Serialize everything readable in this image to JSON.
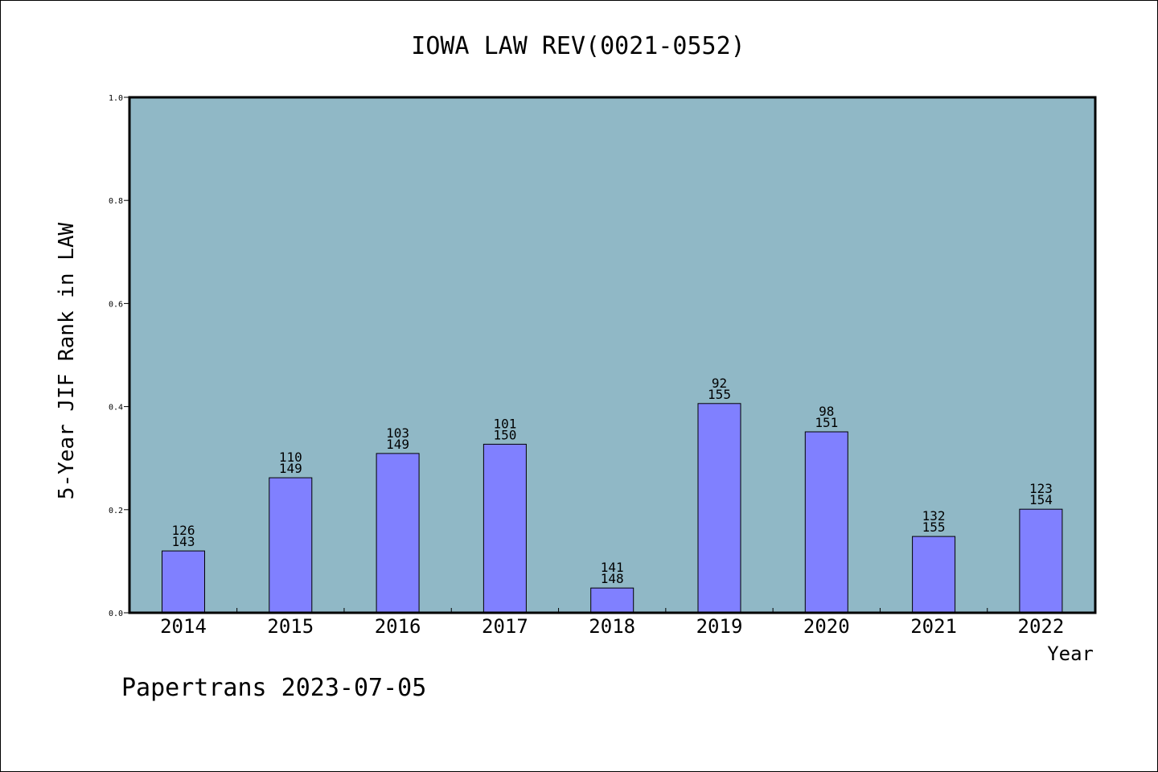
{
  "chart_data": {
    "type": "bar",
    "title": "IOWA LAW REV(0021-0552)",
    "xlabel": "Year",
    "ylabel": "5-Year JIF Rank in LAW",
    "ylim": [
      0,
      1.0
    ],
    "yticks": [
      "0.0",
      "0.2",
      "0.4",
      "0.6",
      "0.8",
      "1.0"
    ],
    "categories": [
      "2014",
      "2015",
      "2016",
      "2017",
      "2018",
      "2019",
      "2020",
      "2021",
      "2022"
    ],
    "values": [
      0.12,
      0.262,
      0.309,
      0.327,
      0.048,
      0.406,
      0.351,
      0.148,
      0.201
    ],
    "rank": [
      "126",
      "110",
      "103",
      "101",
      "141",
      "92",
      "98",
      "132",
      "123"
    ],
    "total": [
      "143",
      "149",
      "149",
      "150",
      "148",
      "155",
      "151",
      "155",
      "154"
    ],
    "grid": false,
    "colors": {
      "plot_bg": "#90b8c6",
      "bar": "#8080ff",
      "bar_edge": "#000000"
    }
  },
  "footer": {
    "text": "Papertrans 2023-07-05"
  }
}
